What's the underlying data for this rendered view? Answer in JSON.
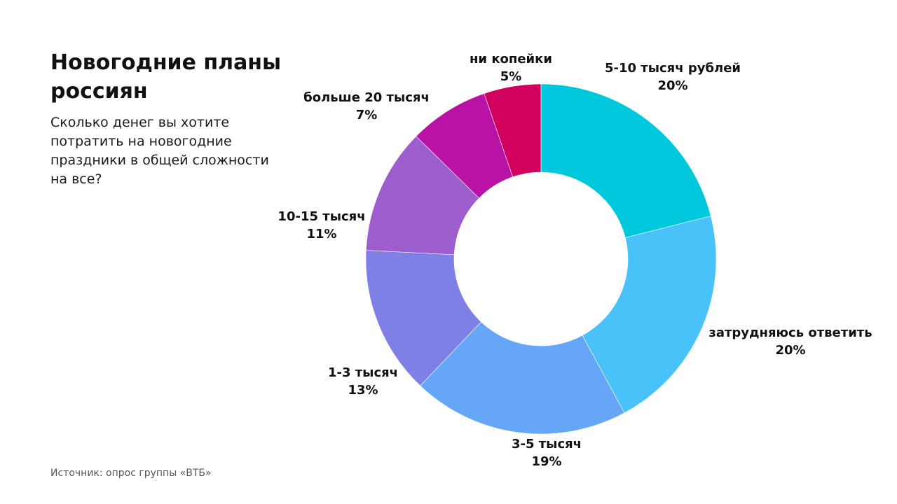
{
  "header": {
    "title": "Новогодние планы россиян",
    "subtitle": "Сколько денег вы хотите потратить на новогодние праздники в общей сложности на все?"
  },
  "footer": {
    "source": "Источник: опрос группы «ВТБ»"
  },
  "chart_data": {
    "type": "pie",
    "style": "donut",
    "categories": [
      "5-10 тысяч рублей",
      "затрудняюсь ответить",
      "3-5 тысяч",
      "1-3 тысяч",
      "10-15 тысяч",
      "больше 20 тысяч",
      "ни копейки"
    ],
    "values": [
      20,
      20,
      19,
      13,
      11,
      7,
      5
    ],
    "value_labels": [
      "20%",
      "20%",
      "19%",
      "13%",
      "11%",
      "7%",
      "5%"
    ],
    "colors": [
      "#00c8dc",
      "#49c2fa",
      "#66a6f6",
      "#7f80e6",
      "#9d5dcc",
      "#b912a4",
      "#d2005f",
      "#e0504a"
    ],
    "legend": "none"
  }
}
